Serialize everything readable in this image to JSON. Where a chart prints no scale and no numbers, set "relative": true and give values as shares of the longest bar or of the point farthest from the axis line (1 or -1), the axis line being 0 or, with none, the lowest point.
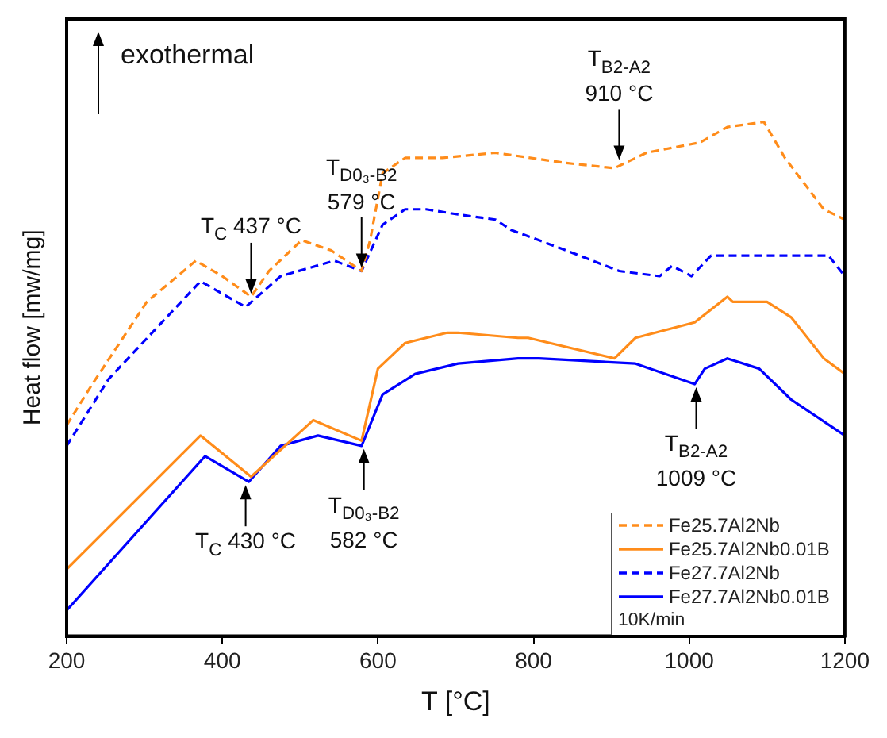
{
  "chart_data": {
    "type": "line",
    "relative": true,
    "xlabel": "T [°C]",
    "ylabel": "Heat flow [mw/mg]",
    "xlim": [
      200,
      1200
    ],
    "xticks": [
      200,
      400,
      600,
      800,
      1000,
      1200
    ],
    "legend": "bottom right",
    "series": [
      {
        "name": "Fe25.7Al2Nb",
        "color": "#ff8c1a",
        "line_style": "dashed",
        "x": [
          200,
          233,
          303,
          366,
          400,
          437,
          460,
          502,
          540,
          579,
          590,
          606,
          635,
          683,
          751,
          842,
          904,
          945,
          1014,
          1049,
          1096,
          1123,
          1173,
          1200
        ],
        "values": [
          0.41,
          0.49,
          0.65,
          0.73,
          0.7,
          0.66,
          0.71,
          0.77,
          0.75,
          0.71,
          0.77,
          0.9,
          0.93,
          0.93,
          0.94,
          0.92,
          0.91,
          0.94,
          0.96,
          0.99,
          1.0,
          0.93,
          0.83,
          0.81
        ]
      },
      {
        "name": "Fe25.7Al2Nb0.01B",
        "color": "#ff8c1a",
        "line_style": "solid",
        "x": [
          200,
          372,
          437,
          517,
          579,
          600,
          635,
          689,
          703,
          780,
          793,
          904,
          931,
          1007,
          1049,
          1056,
          1100,
          1131,
          1173,
          1200
        ],
        "values": [
          0.13,
          0.39,
          0.31,
          0.42,
          0.38,
          0.52,
          0.57,
          0.59,
          0.59,
          0.58,
          0.58,
          0.54,
          0.58,
          0.61,
          0.66,
          0.65,
          0.65,
          0.62,
          0.54,
          0.51
        ]
      },
      {
        "name": "Fe27.7Al2Nb",
        "color": "#0000ff",
        "line_style": "dashed",
        "x": [
          200,
          254,
          372,
          430,
          475,
          544,
          579,
          606,
          635,
          662,
          703,
          751,
          771,
          842,
          910,
          962,
          978,
          1003,
          1028,
          1082,
          1179,
          1200
        ],
        "values": [
          0.37,
          0.5,
          0.69,
          0.64,
          0.7,
          0.73,
          0.71,
          0.8,
          0.83,
          0.83,
          0.82,
          0.81,
          0.79,
          0.75,
          0.71,
          0.7,
          0.72,
          0.7,
          0.74,
          0.74,
          0.74,
          0.7
        ]
      },
      {
        "name": "Fe27.7Al2Nb0.01B",
        "color": "#0000ff",
        "line_style": "solid",
        "x": [
          200,
          378,
          434,
          475,
          523,
          579,
          606,
          648,
          703,
          780,
          807,
          931,
          1007,
          1020,
          1049,
          1090,
          1131,
          1200
        ],
        "values": [
          0.05,
          0.35,
          0.3,
          0.37,
          0.39,
          0.37,
          0.47,
          0.51,
          0.53,
          0.54,
          0.54,
          0.53,
          0.49,
          0.52,
          0.54,
          0.52,
          0.46,
          0.39
        ]
      }
    ],
    "annotations": [
      "exothermal",
      "10K/min",
      {
        "text": "T$_{C}$ 437 °C",
        "x": 437,
        "y": 0.66
      },
      {
        "text": "T$_{D0₃-B2}$\n579 °C",
        "x": 579,
        "y": 0.71
      },
      {
        "text": "T$_{B2-A2}$\n910 °C",
        "x": 910,
        "y": 0.92
      },
      {
        "text": "T$_{C}$ 430 °C",
        "x": 430,
        "y": 0.3
      },
      {
        "text": "T$_{D0₃-B2}$\n582 °C",
        "x": 582,
        "y": 0.37
      },
      {
        "text": "T$_{B2-A2}$\n1009 °C",
        "x": 1009,
        "y": 0.49
      }
    ]
  }
}
